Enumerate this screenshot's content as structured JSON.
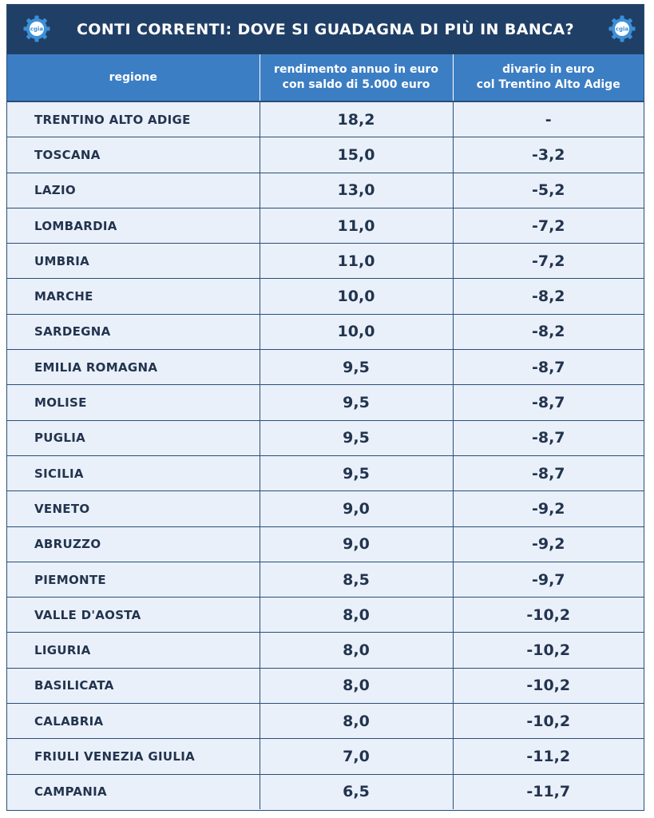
{
  "title": "CONTI CORRENTI: DOVE SI GUADAGNA DI PIÙ IN BANCA?",
  "logo_text": "cgia",
  "colors": {
    "title_bg": "#203f66",
    "header_bg": "#3c7ec4",
    "body_bg": "#e9f0f9",
    "text": "#23344f"
  },
  "icons": [
    "logo-gear-icon"
  ],
  "chart_data": {
    "type": "table",
    "title": "CONTI CORRENTI: DOVE SI GUADAGNA DI PIÙ IN BANCA?",
    "columns": [
      {
        "lines": [
          "regione"
        ]
      },
      {
        "lines": [
          "rendimento annuo in euro",
          "con saldo di 5.000 euro"
        ]
      },
      {
        "lines": [
          "divario in euro",
          "col Trentino Alto Adige"
        ]
      }
    ],
    "rows": [
      [
        "TRENTINO ALTO ADIGE",
        "18,2",
        "-"
      ],
      [
        "TOSCANA",
        "15,0",
        "-3,2"
      ],
      [
        "LAZIO",
        "13,0",
        "-5,2"
      ],
      [
        "LOMBARDIA",
        "11,0",
        "-7,2"
      ],
      [
        "UMBRIA",
        "11,0",
        "-7,2"
      ],
      [
        "MARCHE",
        "10,0",
        "-8,2"
      ],
      [
        "SARDEGNA",
        "10,0",
        "-8,2"
      ],
      [
        "EMILIA ROMAGNA",
        "9,5",
        "-8,7"
      ],
      [
        "MOLISE",
        "9,5",
        "-8,7"
      ],
      [
        "PUGLIA",
        "9,5",
        "-8,7"
      ],
      [
        "SICILIA",
        "9,5",
        "-8,7"
      ],
      [
        "VENETO",
        "9,0",
        "-9,2"
      ],
      [
        "ABRUZZO",
        "9,0",
        "-9,2"
      ],
      [
        "PIEMONTE",
        "8,5",
        "-9,7"
      ],
      [
        "VALLE D'AOSTA",
        "8,0",
        "-10,2"
      ],
      [
        "LIGURIA",
        "8,0",
        "-10,2"
      ],
      [
        "BASILICATA",
        "8,0",
        "-10,2"
      ],
      [
        "CALABRIA",
        "8,0",
        "-10,2"
      ],
      [
        "FRIULI VENEZIA GIULIA",
        "7,0",
        "-11,2"
      ],
      [
        "CAMPANIA",
        "6,5",
        "-11,7"
      ]
    ]
  }
}
